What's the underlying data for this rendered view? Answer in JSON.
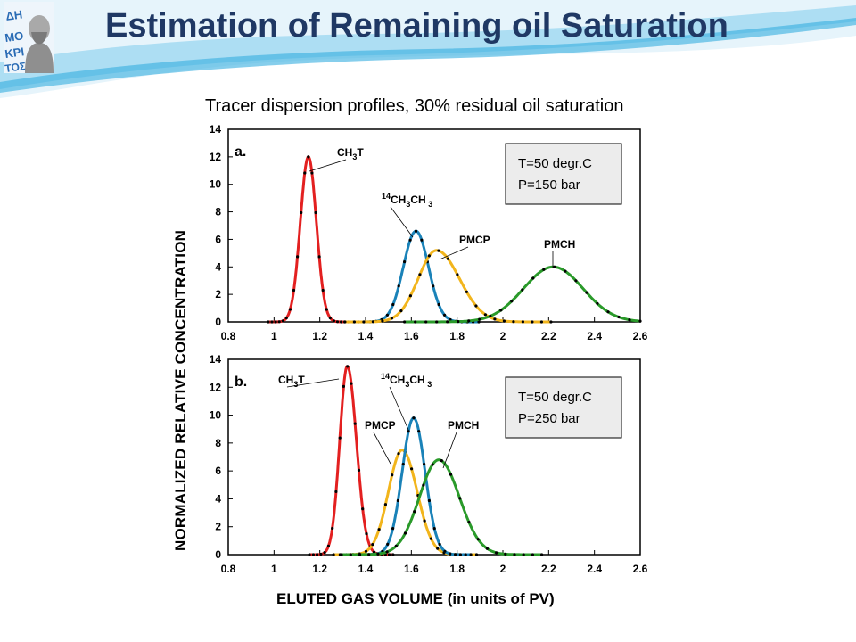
{
  "header": {
    "title": "Estimation of Remaining oil Saturation",
    "logo_text": "ΔΗΜΟΚΡΙΤΟΣ",
    "colors": {
      "title": "#1f3864",
      "wave_light": "#d6ecf8",
      "wave_mid": "#8fd1ef",
      "wave_dark": "#2aa8dc"
    }
  },
  "figure": {
    "title": "Tracer dispersion profiles, 30% residual oil saturation",
    "ylabel": "NORMALIZED RELATIVE CONCENTRATION",
    "xlabel": "ELUTED GAS VOLUME (in units of PV)"
  },
  "chart_data": [
    {
      "type": "line",
      "panel": "a.",
      "conditions": [
        "T=50 degr.C",
        "P=150 bar"
      ],
      "xlim": [
        0.8,
        2.6
      ],
      "ylim": [
        0,
        14
      ],
      "x_ticks": [
        "0.8",
        "1",
        "1.2",
        "1.4",
        "1.6",
        "1.8",
        "2",
        "2.2",
        "2.4",
        "2.6"
      ],
      "y_ticks": [
        "0",
        "2",
        "4",
        "6",
        "8",
        "10",
        "12",
        "14"
      ],
      "series": [
        {
          "label": "CH3T",
          "color": "#e32020",
          "peak_x": 1.15,
          "peak_y": 12.0,
          "sigma_left": 0.035,
          "sigma_right": 0.035
        },
        {
          "label": "14CH3CH3",
          "color": "#1a82b8",
          "peak_x": 1.62,
          "peak_y": 6.6,
          "sigma_left": 0.055,
          "sigma_right": 0.055
        },
        {
          "label": "PMCP",
          "color": "#f2b51c",
          "peak_x": 1.71,
          "peak_y": 5.2,
          "sigma_left": 0.08,
          "sigma_right": 0.1
        },
        {
          "label": "PMCH",
          "color": "#2a9a2a",
          "peak_x": 2.22,
          "peak_y": 4.0,
          "sigma_left": 0.13,
          "sigma_right": 0.13
        }
      ]
    },
    {
      "type": "line",
      "panel": "b.",
      "conditions": [
        "T=50 degr.C",
        "P=250 bar"
      ],
      "xlim": [
        0.8,
        2.6
      ],
      "ylim": [
        0,
        14
      ],
      "x_ticks": [
        "0.8",
        "1",
        "1.2",
        "1.4",
        "1.6",
        "1.8",
        "2",
        "2.2",
        "2.4",
        "2.6"
      ],
      "y_ticks": [
        "0",
        "2",
        "4",
        "6",
        "8",
        "10",
        "12",
        "14"
      ],
      "series": [
        {
          "label": "CH3T",
          "color": "#e32020",
          "peak_x": 1.32,
          "peak_y": 13.5,
          "sigma_left": 0.033,
          "sigma_right": 0.04
        },
        {
          "label": "PMCP",
          "color": "#f2b51c",
          "peak_x": 1.56,
          "peak_y": 7.5,
          "sigma_left": 0.06,
          "sigma_right": 0.065
        },
        {
          "label": "14CH3CH3",
          "color": "#1a82b8",
          "peak_x": 1.61,
          "peak_y": 9.8,
          "sigma_left": 0.05,
          "sigma_right": 0.05
        },
        {
          "label": "PMCH",
          "color": "#2a9a2a",
          "peak_x": 1.72,
          "peak_y": 6.8,
          "sigma_left": 0.085,
          "sigma_right": 0.09
        }
      ]
    }
  ]
}
